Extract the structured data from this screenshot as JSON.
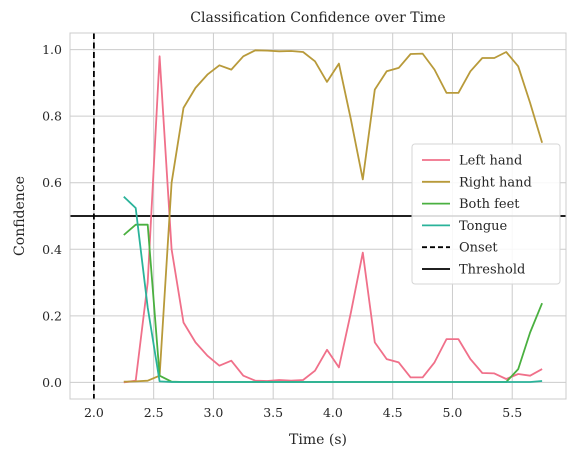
{
  "chart_data": {
    "type": "line",
    "title": "Classification Confidence over Time",
    "xlabel": "Time (s)",
    "ylabel": "Confidence",
    "xlim": [
      1.8,
      5.95
    ],
    "ylim": [
      -0.05,
      1.05
    ],
    "x_ticks": [
      2.0,
      2.5,
      3.0,
      3.5,
      4.0,
      4.5,
      5.0,
      5.5
    ],
    "x_tick_labels": [
      "2.0",
      "2.5",
      "3.0",
      "3.5",
      "4.0",
      "4.5",
      "5.0",
      "5.5"
    ],
    "y_ticks": [
      0.0,
      0.2,
      0.4,
      0.6,
      0.8,
      1.0
    ],
    "y_tick_labels": [
      "0.0",
      "0.2",
      "0.4",
      "0.6",
      "0.8",
      "1.0"
    ],
    "grid": true,
    "legend_position": "center-right",
    "x": [
      2.25,
      2.35,
      2.45,
      2.55,
      2.65,
      2.75,
      2.85,
      2.95,
      3.05,
      3.15,
      3.25,
      3.35,
      3.45,
      3.55,
      3.65,
      3.75,
      3.85,
      3.95,
      4.05,
      4.15,
      4.25,
      4.35,
      4.45,
      4.55,
      4.65,
      4.75,
      4.85,
      4.95,
      5.05,
      5.15,
      5.25,
      5.35,
      5.45,
      5.55,
      5.65,
      5.75
    ],
    "series": [
      {
        "name": "Left hand",
        "color": "#f0708a",
        "values": [
          0.0,
          0.005,
          0.3,
          0.98,
          0.4,
          0.18,
          0.12,
          0.08,
          0.05,
          0.065,
          0.02,
          0.005,
          0.004,
          0.007,
          0.005,
          0.007,
          0.035,
          0.098,
          0.045,
          0.21,
          0.39,
          0.12,
          0.07,
          0.06,
          0.015,
          0.015,
          0.06,
          0.13,
          0.13,
          0.07,
          0.028,
          0.027,
          0.01,
          0.025,
          0.02,
          0.04
        ]
      },
      {
        "name": "Right hand",
        "color": "#b89a3a",
        "values": [
          0.002,
          0.003,
          0.005,
          0.02,
          0.6,
          0.825,
          0.885,
          0.925,
          0.953,
          0.94,
          0.98,
          0.998,
          0.997,
          0.995,
          0.996,
          0.993,
          0.965,
          0.903,
          0.958,
          0.79,
          0.61,
          0.88,
          0.935,
          0.945,
          0.987,
          0.988,
          0.94,
          0.87,
          0.87,
          0.935,
          0.975,
          0.975,
          0.993,
          0.95,
          0.84,
          0.72
        ]
      },
      {
        "name": "Both feet",
        "color": "#4ab040",
        "values": [
          0.443,
          0.474,
          0.474,
          0.02,
          0.002,
          0.001,
          0.001,
          0.001,
          0.001,
          0.001,
          0.001,
          0.001,
          0.001,
          0.001,
          0.001,
          0.001,
          0.001,
          0.001,
          0.001,
          0.001,
          0.001,
          0.001,
          0.001,
          0.001,
          0.001,
          0.001,
          0.001,
          0.001,
          0.001,
          0.001,
          0.001,
          0.001,
          0.001,
          0.04,
          0.15,
          0.238
        ]
      },
      {
        "name": "Tongue",
        "color": "#2ab39a",
        "values": [
          0.558,
          0.524,
          0.225,
          0.003,
          0.001,
          0.001,
          0.001,
          0.001,
          0.001,
          0.001,
          0.001,
          0.001,
          0.001,
          0.001,
          0.001,
          0.001,
          0.001,
          0.001,
          0.001,
          0.001,
          0.001,
          0.001,
          0.001,
          0.001,
          0.001,
          0.001,
          0.001,
          0.001,
          0.001,
          0.001,
          0.001,
          0.001,
          0.001,
          0.001,
          0.001,
          0.004
        ]
      }
    ],
    "reference_lines": {
      "onset": {
        "name": "Onset",
        "x": 2.0,
        "color": "#000000",
        "style": "dashed"
      },
      "threshold": {
        "name": "Threshold",
        "y": 0.5,
        "color": "#000000",
        "style": "solid"
      }
    }
  }
}
